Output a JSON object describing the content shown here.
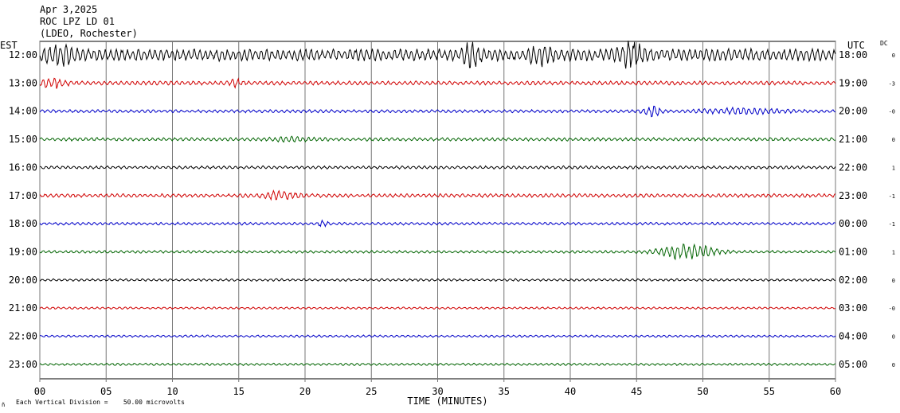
{
  "header": {
    "line1": "Apr 3,2025",
    "line2": "ROC LPZ LD 01",
    "line3": "(LDEO, Rochester)",
    "left_zone": "EST",
    "right_zone": "UTC",
    "dc_label": "DC"
  },
  "footer": {
    "corner_mark": "ñ",
    "scale_note": "Each Vertical Division =    50.00 microvolts"
  },
  "chart_data": {
    "type": "line",
    "xlabel": "TIME (MINUTES)",
    "xlim": [
      0,
      60
    ],
    "x_ticks": [
      "00",
      "05",
      "10",
      "15",
      "20",
      "25",
      "30",
      "35",
      "40",
      "45",
      "50",
      "55",
      "60"
    ],
    "grid": true,
    "trace_colors": [
      "#000000",
      "#d00000",
      "#0000c8",
      "#006400"
    ],
    "rows": [
      {
        "est": "12:00",
        "utc": "18:00",
        "dc": "0",
        "color": "#000000",
        "amp": 8.0,
        "events": [
          {
            "t": 1.5,
            "a": 10,
            "d": 1.0
          },
          {
            "t": 32.6,
            "a": 14,
            "d": 0.6
          },
          {
            "t": 37.8,
            "a": 10,
            "d": 0.8
          },
          {
            "t": 44.6,
            "a": 12,
            "d": 1.0
          }
        ]
      },
      {
        "est": "13:00",
        "utc": "19:00",
        "dc": "-3",
        "color": "#d00000",
        "amp": 2.6,
        "events": [
          {
            "t": 1.0,
            "a": 6,
            "d": 1.0
          },
          {
            "t": 14.8,
            "a": 4,
            "d": 0.4
          }
        ]
      },
      {
        "est": "14:00",
        "utc": "20:00",
        "dc": "-0",
        "color": "#0000c8",
        "amp": 2.0,
        "events": [
          {
            "t": 46.2,
            "a": 7,
            "d": 0.6
          },
          {
            "t": 53.0,
            "a": 3,
            "d": 3.0
          }
        ]
      },
      {
        "est": "15:00",
        "utc": "21:00",
        "dc": "0",
        "color": "#006400",
        "amp": 2.2,
        "events": [
          {
            "t": 19.0,
            "a": 2,
            "d": 1.5
          }
        ]
      },
      {
        "est": "16:00",
        "utc": "22:00",
        "dc": "1",
        "color": "#000000",
        "amp": 2.0,
        "events": []
      },
      {
        "est": "17:00",
        "utc": "23:00",
        "dc": "-1",
        "color": "#d00000",
        "amp": 2.4,
        "events": [
          {
            "t": 18.0,
            "a": 4,
            "d": 1.6
          }
        ]
      },
      {
        "est": "18:00",
        "utc": "00:00",
        "dc": "-1",
        "color": "#0000c8",
        "amp": 1.8,
        "events": [
          {
            "t": 21.3,
            "a": 3,
            "d": 0.4
          }
        ]
      },
      {
        "est": "19:00",
        "utc": "01:00",
        "dc": "1",
        "color": "#006400",
        "amp": 1.8,
        "events": [
          {
            "t": 48.8,
            "a": 10,
            "d": 2.0
          }
        ]
      },
      {
        "est": "20:00",
        "utc": "02:00",
        "dc": "0",
        "color": "#000000",
        "amp": 1.6,
        "events": []
      },
      {
        "est": "21:00",
        "utc": "03:00",
        "dc": "-0",
        "color": "#d00000",
        "amp": 1.4,
        "events": []
      },
      {
        "est": "22:00",
        "utc": "04:00",
        "dc": "0",
        "color": "#0000c8",
        "amp": 1.5,
        "events": []
      },
      {
        "est": "23:00",
        "utc": "05:00",
        "dc": "0",
        "color": "#006400",
        "amp": 1.5,
        "events": []
      }
    ]
  }
}
